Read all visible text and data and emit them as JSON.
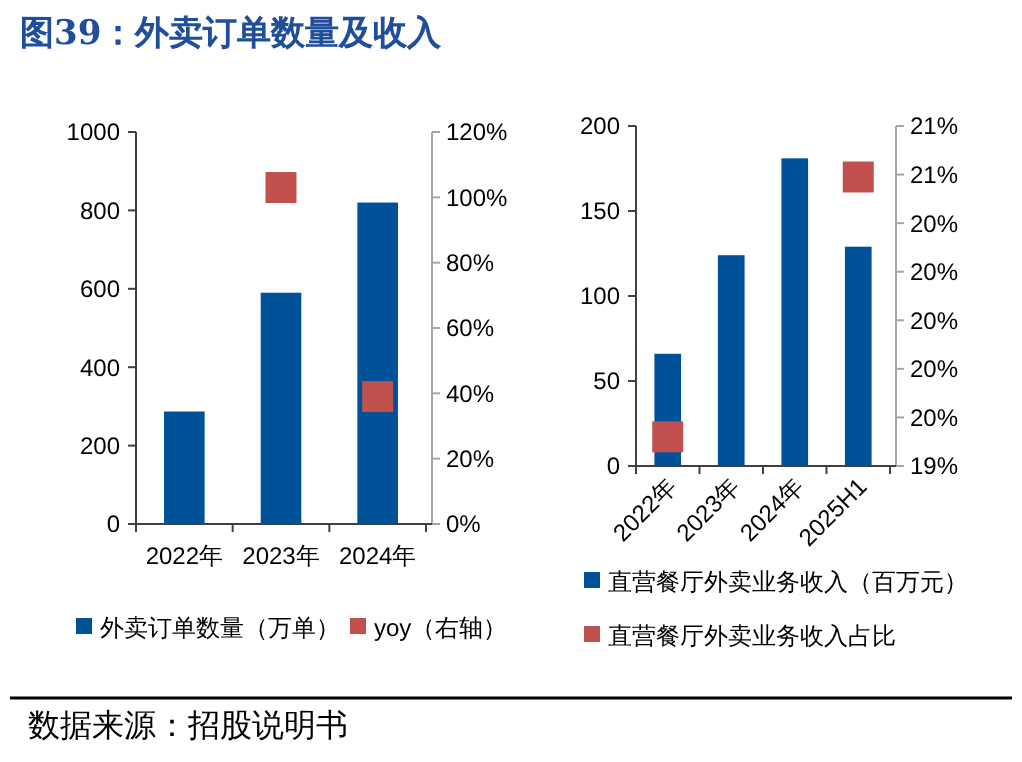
{
  "chart_data": [
    {
      "type": "bar",
      "title": "图39：外卖订单数量及收入",
      "categories": [
        "2022年",
        "2023年",
        "2024年"
      ],
      "ylim": [
        0,
        1000
      ],
      "yticks": [
        0,
        200,
        400,
        600,
        800,
        1000
      ],
      "y2lim": [
        0,
        120
      ],
      "y2ticks": [
        {
          "value": 0,
          "label": "0%"
        },
        {
          "value": 20,
          "label": "20%"
        },
        {
          "value": 40,
          "label": "40%"
        },
        {
          "value": 60,
          "label": "60%"
        },
        {
          "value": 80,
          "label": "80%"
        },
        {
          "value": 100,
          "label": "100%"
        },
        {
          "value": 120,
          "label": "120%"
        }
      ],
      "legend": "bottom",
      "grid": false,
      "series": [
        {
          "name": "外卖订单数量（万单）",
          "color": "#005298",
          "values": [
            287,
            590,
            820
          ]
        },
        {
          "name": "yoy（右轴）",
          "type": "scatter",
          "axis": "y2",
          "marker": "square",
          "color": "#c0504d",
          "values": [
            null,
            103,
            39
          ]
        }
      ]
    },
    {
      "type": "bar",
      "categories": [
        "2022年",
        "2023年",
        "2024年",
        "2025H1"
      ],
      "ylim": [
        0,
        200
      ],
      "yticks": [
        0,
        50,
        100,
        150,
        200
      ],
      "y2lim": [
        19.4,
        20.8
      ],
      "y2ticks": [
        {
          "value": 19.4,
          "label": "19%"
        },
        {
          "value": 19.6,
          "label": "20%"
        },
        {
          "value": 19.8,
          "label": "20%"
        },
        {
          "value": 20,
          "label": "20%"
        },
        {
          "value": 20.2,
          "label": "20%"
        },
        {
          "value": 20.4,
          "label": "20%"
        },
        {
          "value": 20.6,
          "label": "21%"
        },
        {
          "value": 20.8,
          "label": "21%"
        }
      ],
      "legend": "bottom",
      "grid": false,
      "annotations": [
        "数据来源：招股说明书"
      ],
      "series": [
        {
          "name": "直营餐厅外卖业务收入（百万元）",
          "color": "#005298",
          "values": [
            66,
            124,
            181,
            129
          ]
        },
        {
          "name": "直营餐厅外卖业务收入占比",
          "type": "scatter",
          "axis": "y2",
          "marker": "square",
          "color": "#c0504d",
          "values": [
            19.52,
            null,
            null,
            20.59
          ]
        }
      ]
    }
  ]
}
